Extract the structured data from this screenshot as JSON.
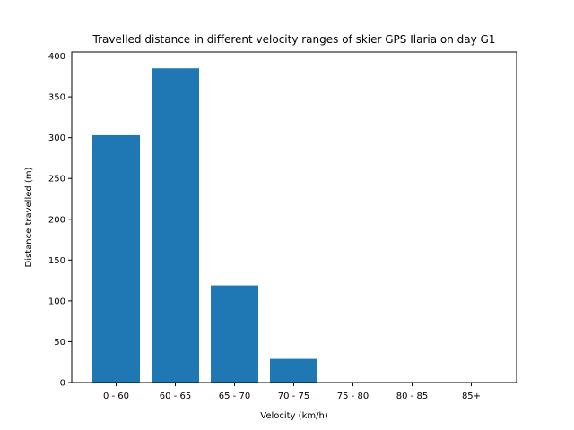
{
  "chart_data": {
    "type": "bar",
    "title": "Travelled distance in different velocity ranges of skier GPS Ilaria on day G1",
    "xlabel": "Velocity (km/h)",
    "ylabel": "Distance travelled (m)",
    "categories": [
      "0 - 60",
      "60 - 65",
      "65 - 70",
      "70 - 75",
      "75 - 80",
      "80 - 85",
      "85+"
    ],
    "values": [
      303,
      385,
      119,
      29,
      0,
      0,
      0
    ],
    "ylim": [
      0,
      405
    ],
    "yticks": [
      0,
      50,
      100,
      150,
      200,
      250,
      300,
      350,
      400
    ],
    "grid": false,
    "legend": "none",
    "bar_color": "#1f77b4"
  }
}
